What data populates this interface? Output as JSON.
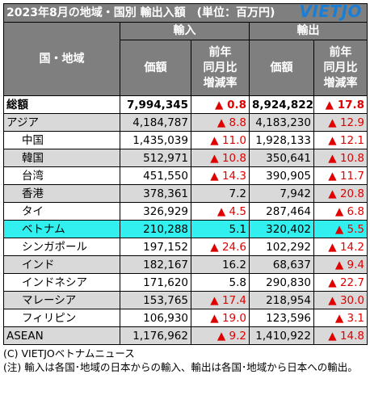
{
  "brand": {
    "logo_text": "VIETJO",
    "logo_color": "#1a7fd4"
  },
  "title": "2023年8月の地域・国別 輸出入額　(単位：百万円)",
  "headers": {
    "region": "国・地域",
    "import": "輸入",
    "export": "輸出",
    "value": "価額",
    "change_line1": "前年",
    "change_line2": "同月比",
    "change_line3": "増減率"
  },
  "rows": [
    {
      "name": "総額",
      "imp": "7,994,345",
      "imp_chg": "▲ 0.8",
      "imp_red": true,
      "exp": "8,924,822",
      "exp_chg": "▲ 17.8",
      "exp_red": true
    },
    {
      "name": "アジア",
      "imp": "4,184,787",
      "imp_chg": "▲ 8.8",
      "imp_red": true,
      "exp": "4,183,230",
      "exp_chg": "▲ 12.9",
      "exp_red": true
    },
    {
      "name": "中国",
      "imp": "1,435,039",
      "imp_chg": "▲ 11.0",
      "imp_red": true,
      "exp": "1,928,133",
      "exp_chg": "▲ 12.1",
      "exp_red": true
    },
    {
      "name": "韓国",
      "imp": "512,971",
      "imp_chg": "▲ 10.8",
      "imp_red": true,
      "exp": "350,641",
      "exp_chg": "▲ 10.8",
      "exp_red": true
    },
    {
      "name": "台湾",
      "imp": "451,550",
      "imp_chg": "▲ 14.3",
      "imp_red": true,
      "exp": "390,905",
      "exp_chg": "▲ 11.7",
      "exp_red": true
    },
    {
      "name": "香港",
      "imp": "378,361",
      "imp_chg": "7.2",
      "imp_red": false,
      "exp": "7,942",
      "exp_chg": "▲ 20.8",
      "exp_red": true
    },
    {
      "name": "タイ",
      "imp": "326,929",
      "imp_chg": "▲ 4.5",
      "imp_red": true,
      "exp": "287,464",
      "exp_chg": "▲ 6.8",
      "exp_red": true
    },
    {
      "name": "ベトナム",
      "imp": "210,288",
      "imp_chg": "5.1",
      "imp_red": false,
      "exp": "320,402",
      "exp_chg": "▲ 5.5",
      "exp_red": true
    },
    {
      "name": "シンガポール",
      "imp": "197,152",
      "imp_chg": "▲ 24.6",
      "imp_red": true,
      "exp": "102,292",
      "exp_chg": "▲ 14.2",
      "exp_red": true
    },
    {
      "name": "インド",
      "imp": "182,167",
      "imp_chg": "16.2",
      "imp_red": false,
      "exp": "68,637",
      "exp_chg": "▲ 9.4",
      "exp_red": true
    },
    {
      "name": "インドネシア",
      "imp": "171,620",
      "imp_chg": "5.8",
      "imp_red": false,
      "exp": "290,830",
      "exp_chg": "▲ 22.7",
      "exp_red": true
    },
    {
      "name": "マレーシア",
      "imp": "153,765",
      "imp_chg": "▲ 17.4",
      "imp_red": true,
      "exp": "218,954",
      "exp_chg": "▲ 30.0",
      "exp_red": true
    },
    {
      "name": "フィリピン",
      "imp": "106,930",
      "imp_chg": "▲ 19.0",
      "imp_red": true,
      "exp": "123,596",
      "exp_chg": "▲ 3.1",
      "exp_red": true
    },
    {
      "name": "ASEAN",
      "imp": "1,176,962",
      "imp_chg": "▲ 9.2",
      "imp_red": true,
      "exp": "1,410,922",
      "exp_chg": "▲ 14.8",
      "exp_red": true
    }
  ],
  "footer": {
    "credit": "(C) VIETJOベトナムニュース",
    "note": "(注) 輸入は各国･地域の日本からの輸入、輸出は各国･地域から日本への輸出。"
  },
  "colors": {
    "header_bg": "#7f7f7f",
    "grey_row": "#d9d9d9",
    "highlight_row": "#33f0f0",
    "negative": "#e00000"
  }
}
